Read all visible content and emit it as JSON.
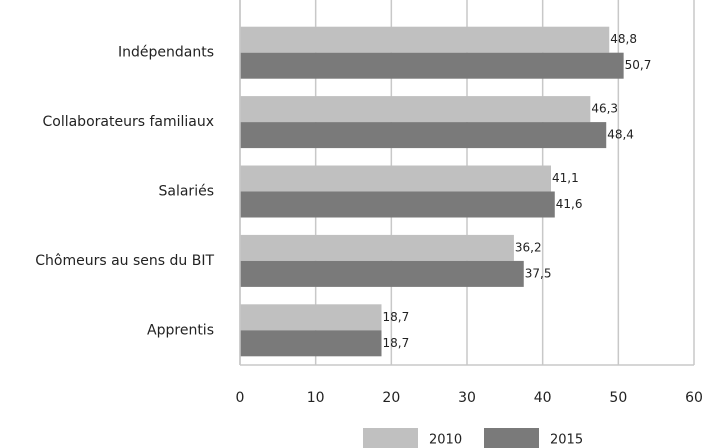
{
  "chart_data": {
    "type": "barh",
    "categories": [
      "Indépendants",
      "Collaborateurs familiaux",
      "Salariés",
      "Chômeurs au sens du BIT",
      "Apprentis"
    ],
    "series": [
      {
        "name": "2010",
        "color": "#c0c0c0",
        "values": [
          48.8,
          46.3,
          41.1,
          36.2,
          18.7
        ],
        "value_labels": [
          "48,8",
          "46,3",
          "41,1",
          "36,2",
          "18,7"
        ]
      },
      {
        "name": "2015",
        "color": "#7a7a7a",
        "values": [
          50.7,
          48.4,
          41.6,
          37.5,
          18.7
        ],
        "value_labels": [
          "50,7",
          "48,4",
          "41,6",
          "37,5",
          "18,7"
        ]
      }
    ],
    "xlim": [
      0,
      60
    ],
    "xticks": [
      0,
      10,
      20,
      30,
      40,
      50,
      60
    ],
    "grid": true,
    "legend": "bottom"
  }
}
